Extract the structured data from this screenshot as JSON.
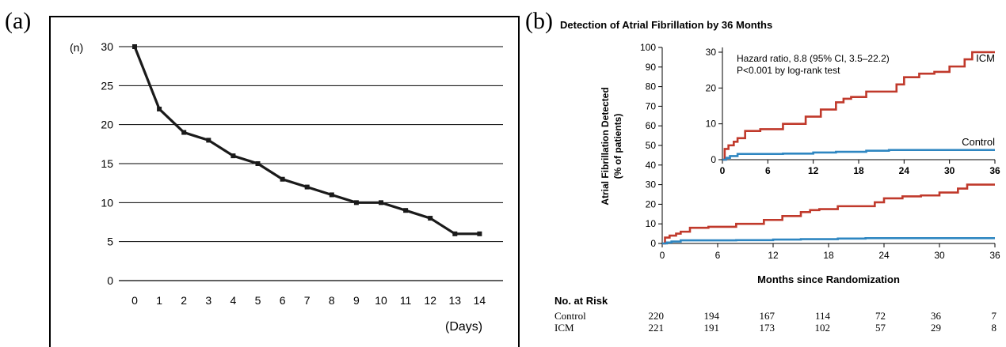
{
  "panels": {
    "a_label": "(a)",
    "b_label": "(b)"
  },
  "chart_data": [
    {
      "type": "line",
      "title": "",
      "ylabel": "(n)",
      "xlabel": "(Days)",
      "ylim": [
        0,
        30
      ],
      "yticks": [
        "0",
        "5",
        "10",
        "15",
        "20",
        "25",
        "30"
      ],
      "xticks": [
        "0",
        "1",
        "2",
        "3",
        "4",
        "5",
        "6",
        "7",
        "8",
        "9",
        "10",
        "11",
        "12",
        "13",
        "14"
      ],
      "grid": "horizontal",
      "color": "#1a1a1a",
      "x": [
        0,
        1,
        2,
        3,
        4,
        5,
        6,
        7,
        8,
        9,
        10,
        11,
        12,
        13,
        14
      ],
      "values": [
        30,
        22,
        19,
        18,
        16,
        15,
        13,
        12,
        11,
        10,
        10,
        9,
        8,
        6,
        6
      ]
    },
    {
      "type": "line",
      "title": "Detection of Atrial Fibrillation by 36 Months",
      "ylabel_line1": "Atrial Fibrillation Detected",
      "ylabel_line2": "(% of patients)",
      "xlabel": "Months since Randomization",
      "ylim": [
        0,
        100
      ],
      "xlim": [
        0,
        36
      ],
      "yticks": [
        "0",
        "10",
        "20",
        "30",
        "40",
        "50",
        "60",
        "70",
        "80",
        "90",
        "100"
      ],
      "xticks": [
        "0",
        "6",
        "12",
        "18",
        "24",
        "30",
        "36"
      ],
      "series": [
        {
          "name": "ICM",
          "color": "#c0392b",
          "x": [
            0,
            0.3,
            0.8,
            1.5,
            2,
            3,
            5,
            8,
            11,
            12,
            13,
            15,
            16,
            17,
            19,
            22,
            23,
            24,
            26,
            28,
            30,
            32,
            33,
            34,
            36
          ],
          "y": [
            0,
            3,
            4,
            5,
            6,
            8,
            8.5,
            10,
            12,
            12,
            14,
            16,
            17,
            17.5,
            19,
            19,
            21,
            23,
            24,
            24.5,
            26,
            28,
            30,
            30,
            30
          ]
        },
        {
          "name": "Control",
          "color": "#2e86c1",
          "x": [
            0,
            0.5,
            1,
            2,
            5,
            8,
            12,
            15,
            19,
            22,
            24,
            30,
            36
          ],
          "y": [
            0,
            0.5,
            1,
            1.6,
            1.6,
            1.7,
            2,
            2.2,
            2.5,
            2.7,
            2.7,
            2.7,
            2.7
          ]
        }
      ],
      "inset": {
        "ylim": [
          0,
          30
        ],
        "yticks": [
          "0",
          "10",
          "20",
          "30"
        ],
        "xticks": [
          "0",
          "6",
          "12",
          "18",
          "24",
          "30",
          "36"
        ],
        "annotation_line1": "Hazard ratio, 8.8 (95% CI, 3.5–22.2)",
        "annotation_line2": "P<0.001 by log-rank test",
        "icm_label": "ICM",
        "control_label": "Control"
      },
      "risk_table": {
        "title": "No. at Risk",
        "rows": [
          {
            "label": "Control",
            "values": [
              "220",
              "194",
              "167",
              "114",
              "72",
              "36",
              "7"
            ]
          },
          {
            "label": "ICM",
            "values": [
              "221",
              "191",
              "173",
              "102",
              "57",
              "29",
              "8"
            ]
          }
        ]
      }
    }
  ]
}
